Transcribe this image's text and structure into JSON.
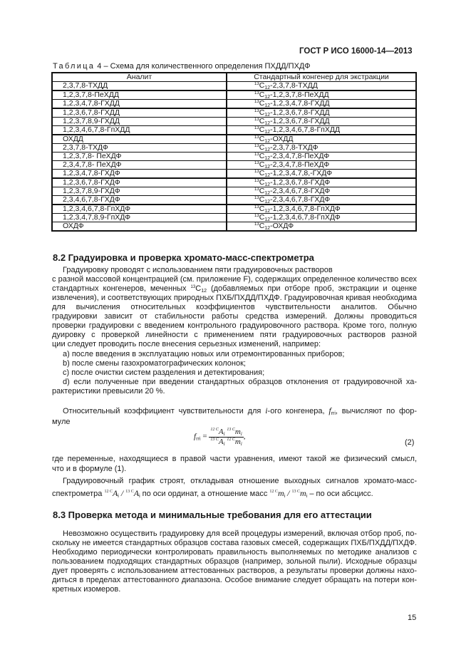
{
  "header": {
    "doc_id": "ГОСТ Р ИСО 16000-14—2013"
  },
  "table": {
    "caption_prefix": "Таблица",
    "caption_rest": " 4 – Схема для количественного определения ПХДД/ПХДФ",
    "columns": [
      "Аналит",
      "Стандартный конгенер для экстракции"
    ],
    "isotope_mass": "13",
    "isotope_element": "C",
    "isotope_count": "12",
    "rows": [
      {
        "analyte": "2,3,7,8-ТХДД",
        "standard": "-2,3,7,8-ТХДД"
      },
      {
        "analyte": "1,2,3,7,8-ПеХДД",
        "standard": "-1,2,3,7,8-ПеХДД"
      },
      {
        "analyte": "1,2,3,4,7,8-ГХДД",
        "standard": "-1,2,3,4,7,8-ГХДД"
      },
      {
        "analyte": "1,2,3,6,7,8-ГХДД",
        "standard": "-1,2,3,6,7,8-ГХДД"
      },
      {
        "analyte": "1,2,3,7,8,9-ГХДД",
        "standard": "-1,2,3,6,7,8-ГХДД"
      },
      {
        "analyte": "1,2,3,4,6,7,8-ГпХДД",
        "standard": "-1,2,3,4,6,7,8-ГпХДД"
      },
      {
        "analyte": "ОХДД",
        "standard": "-ОХДД"
      },
      {
        "analyte": "2,3,7,8-ТХДФ",
        "standard": "-2,3,7,8-ТХДФ"
      },
      {
        "analyte": "1,2,3,7,8- ПеХДФ",
        "standard": "-2,3,4,7,8-ПеХДФ"
      },
      {
        "analyte": "2,3,4,7,8- ПеХДФ",
        "standard": "-2,3,4,7,8-ПеХДФ"
      },
      {
        "analyte": "1,2,3,4,7,8-ГХДФ",
        "standard": "-1,2,3,4,7,8,-ГХДФ"
      },
      {
        "analyte": "1,2,3,6,7,8-ГХДФ",
        "standard": "-1,2,3,6,7,8-ГХДФ"
      },
      {
        "analyte": "1,2,3,7,8,9-ГХДФ",
        "standard": "-2,3,4,6,7,8-ГХДФ"
      },
      {
        "analyte": "2,3,4,6,7,8-ГХДФ",
        "standard": "-2,3,4,6,7,8-ГХДФ"
      },
      {
        "analyte": "1,2,3,4,6,7,8-ГпХДФ",
        "standard": "-1,2,3,4,6,7,8-ГпХДФ"
      },
      {
        "analyte": "1,2,3,4,7,8,9-ГпХДФ",
        "standard": "-1,2,3,4,6,7,8-ГпХДФ"
      },
      {
        "analyte": "ОХДФ",
        "standard": "-ОХДФ"
      }
    ]
  },
  "section_8_2": {
    "heading": "8.2 Градуировка и проверка хромато-масс-спектрометра",
    "lines": [
      [
        {
          "t": "Градуировку проводят с использованием пяти градуировочных растворов"
        }
      ],
      [
        {
          "t": "с разной массовой концентрацией (см. приложение F), содержащих определенное количество всех"
        }
      ],
      [
        {
          "t": "стандартных конгенеров, меченных "
        },
        {
          "sup": "13"
        },
        {
          "t": "C"
        },
        {
          "sub": "12"
        },
        {
          "t": " (добавляемых при отборе проб, экстракции и оценке степени"
        }
      ],
      [
        {
          "t": "извлечения), и соответствующих природных ПХБ/ПХДД/ПХДФ. Градуировочная кривая необходима"
        }
      ],
      [
        {
          "t": "для вычисления относительных коэффициентов чувствительности аналитов. Обычно периодичность"
        }
      ],
      [
        {
          "t": "градуировки зависит от стабильности работы средства измерений. Должны проводиться ежедневные"
        }
      ],
      [
        {
          "t": "проверки градуировки с введением контрольного градуировочного раствора. Кроме того, полную гра-"
        }
      ],
      [
        {
          "t": "дуировку с проверкой линейности с применением пяти градуировочных растворов разной концентра-"
        }
      ],
      [
        {
          "t": "ции следует проводить после внесения серьезных изменений, например:"
        }
      ],
      [
        {
          "t": "a) после введения в эксплуатацию новых или отремонтированных приборов;"
        }
      ],
      [
        {
          "t": "b) после смены газохроматографических колонок;"
        }
      ],
      [
        {
          "t": "c) после очистки систем разделения и детектирования;"
        }
      ],
      [
        {
          "t": "d) если полученные при введении стандартных образцов отклонения от градуировочной ха-"
        }
      ],
      [
        {
          "t": "рактеристики превысили 20 %."
        }
      ],
      [
        {
          "t": "Относительный коэффициент чувствительности для "
        },
        {
          "i": "i"
        },
        {
          "t": "-ого конгенера, "
        },
        {
          "i": "f"
        },
        {
          "sub": "rri"
        },
        {
          "t": ", вычисляют по фор-"
        }
      ],
      [
        {
          "t": "муле"
        }
      ],
      [
        {
          "t": "где переменные, находящиеся в правой части уравнения, имеют такой же физический смысл,"
        }
      ],
      [
        {
          "t": "что и в формуле (1)."
        }
      ],
      [
        {
          "t": "Градуировочный график строят, откладывая отношение выходных сигналов хромато-масс-"
        }
      ],
      [
        {
          "t": "спектрометра  "
        },
        {
          "fs": "12 C"
        },
        {
          "i": "A"
        },
        {
          "sub": "i"
        },
        {
          "i": " / "
        },
        {
          "fs": "13 C"
        },
        {
          "i": "A"
        },
        {
          "sub": "i"
        },
        {
          "t": "  по оси ординат, а отношение масс  "
        },
        {
          "fs": "12 C"
        },
        {
          "i": "m"
        },
        {
          "sub": "i"
        },
        {
          "i": " / "
        },
        {
          "fs": "13 C"
        },
        {
          "i": "m"
        },
        {
          "sub": "i"
        },
        {
          "t": "  – по оси абсцисс."
        }
      ]
    ],
    "formula": {
      "lhs": "f",
      "lhs_sub": "rri",
      "num_a_iso": "12 C",
      "num_a": "A",
      "num_a_sub": "i",
      "num_m_iso": "13 C",
      "num_m": "m",
      "num_m_sub": "i",
      "den_a_iso": "13 C",
      "den_a": "A",
      "den_a_sub": "i",
      "den_m_iso": "12 C",
      "den_m": "m",
      "den_m_sub": "i",
      "number": "(2)"
    }
  },
  "section_8_3": {
    "heading": "8.3 Проверка метода и минимальные требования для его аттестации",
    "lines": [
      [
        {
          "t": "Невозможно осуществить градуировку для всей процедуры измерений, включая отбор проб, по-"
        }
      ],
      [
        {
          "t": "скольку не имеется стандартных образцов состава газовых смесей, содержащих ПХБ/ПХДД/ПХДФ."
        }
      ],
      [
        {
          "t": "Необходимо периодически контролировать правильность выполняемых по методике анализов с ис-"
        }
      ],
      [
        {
          "t": "пользованием подходящих стандартных образцов (например, зольной пыли). Исходные образцы сле-"
        }
      ],
      [
        {
          "t": "дует проверять с использованием аттестованных растворов, а результаты проверки должны нахо-"
        }
      ],
      [
        {
          "t": "диться в пределах аттестованного диапазона. Особое внимание следует обращать на потери кон-"
        }
      ],
      [
        {
          "t": "кретных изомеров."
        }
      ]
    ]
  },
  "footer": {
    "page_number": "15"
  }
}
